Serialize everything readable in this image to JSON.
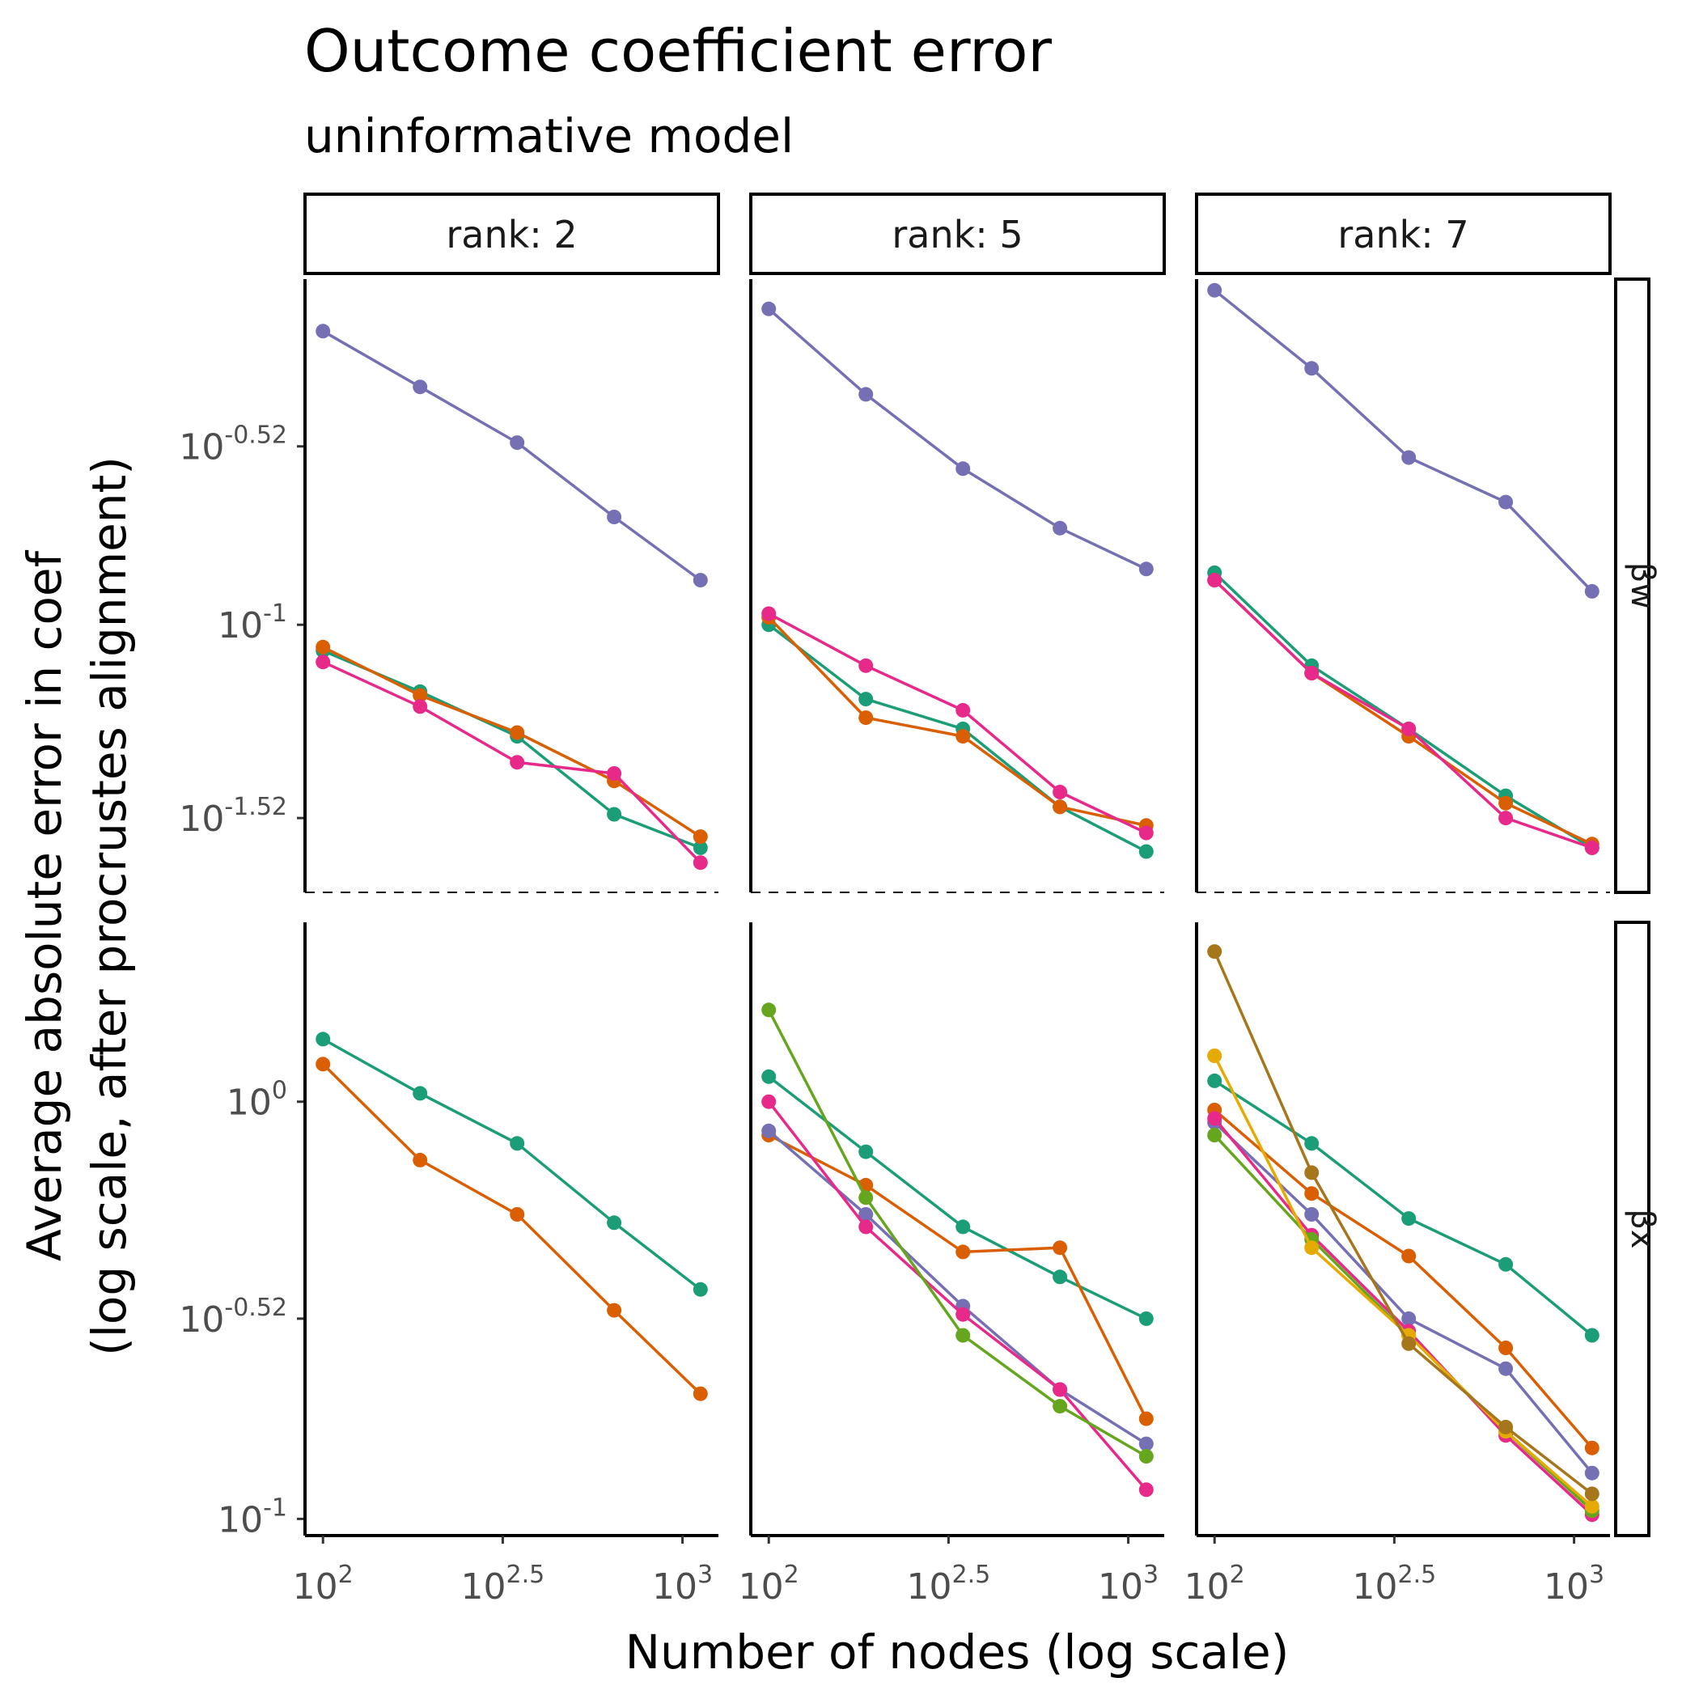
{
  "colors": {
    "teal": "#1b9e77",
    "orange": "#d95f02",
    "purple": "#7570b3",
    "pink": "#e7298a",
    "green": "#66a61e",
    "yellow": "#e6ab02",
    "brown": "#a6761d"
  },
  "chart_data": {
    "type": "line",
    "title": "Outcome coefficient error",
    "subtitle": "uninformative model",
    "xlabel": "Number of nodes (log scale)",
    "ylabel_line1": "Average absolute error in coef",
    "ylabel_line2": "(log scale, after procrustes alignment)",
    "x_log10": [
      2.0,
      2.27,
      2.54,
      2.81,
      3.05
    ],
    "x_ticks": [
      {
        "base": "10",
        "exp": "2",
        "value": 2.0
      },
      {
        "base": "10",
        "exp": "2.5",
        "value": 2.5
      },
      {
        "base": "10",
        "exp": "3",
        "value": 3.0
      }
    ],
    "xlim_log10": [
      1.95,
      3.1
    ],
    "columns": [
      {
        "label": "rank: 2"
      },
      {
        "label": "rank: 5"
      },
      {
        "label": "rank: 7"
      }
    ],
    "rows": [
      {
        "strip": "βw",
        "ylim_log10": [
          -1.72,
          -0.07
        ],
        "y_ticks": [
          {
            "base": "10",
            "exp": "-0.52",
            "value": -0.52
          },
          {
            "base": "10",
            "exp": "-1",
            "value": -1.0
          },
          {
            "base": "10",
            "exp": "-1.52",
            "value": -1.52
          }
        ],
        "panels": [
          [
            {
              "color": "purple",
              "y_log10": [
                -0.21,
                -0.36,
                -0.51,
                -0.71,
                -0.88
              ]
            },
            {
              "color": "teal",
              "y_log10": [
                -1.07,
                -1.18,
                -1.3,
                -1.51,
                -1.6
              ]
            },
            {
              "color": "orange",
              "y_log10": [
                -1.06,
                -1.19,
                -1.29,
                -1.42,
                -1.57
              ]
            },
            {
              "color": "pink",
              "y_log10": [
                -1.1,
                -1.22,
                -1.37,
                -1.4,
                -1.64
              ]
            }
          ],
          [
            {
              "color": "purple",
              "y_log10": [
                -0.15,
                -0.38,
                -0.58,
                -0.74,
                -0.85
              ]
            },
            {
              "color": "teal",
              "y_log10": [
                -1.0,
                -1.2,
                -1.28,
                -1.49,
                -1.61
              ]
            },
            {
              "color": "orange",
              "y_log10": [
                -0.98,
                -1.25,
                -1.3,
                -1.49,
                -1.54
              ]
            },
            {
              "color": "pink",
              "y_log10": [
                -0.97,
                -1.11,
                -1.23,
                -1.45,
                -1.56
              ]
            }
          ],
          [
            {
              "color": "purple",
              "y_log10": [
                -0.1,
                -0.31,
                -0.55,
                -0.67,
                -0.91
              ]
            },
            {
              "color": "teal",
              "y_log10": [
                -0.86,
                -1.11,
                -1.28,
                -1.46,
                -1.6
              ]
            },
            {
              "color": "orange",
              "y_log10": [
                -0.88,
                -1.13,
                -1.3,
                -1.48,
                -1.59
              ]
            },
            {
              "color": "pink",
              "y_log10": [
                -0.88,
                -1.13,
                -1.28,
                -1.52,
                -1.6
              ]
            }
          ]
        ]
      },
      {
        "strip": "βx",
        "ylim_log10": [
          -1.04,
          0.43
        ],
        "y_ticks": [
          {
            "base": "10",
            "exp": "0",
            "value": 0.0
          },
          {
            "base": "10",
            "exp": "-0.52",
            "value": -0.52
          },
          {
            "base": "10",
            "exp": "-1",
            "value": -1.0
          }
        ],
        "panels": [
          [
            {
              "color": "teal",
              "y_log10": [
                0.15,
                0.02,
                -0.1,
                -0.29,
                -0.45
              ]
            },
            {
              "color": "orange",
              "y_log10": [
                0.09,
                -0.14,
                -0.27,
                -0.5,
                -0.7
              ]
            }
          ],
          [
            {
              "color": "teal",
              "y_log10": [
                0.06,
                -0.12,
                -0.3,
                -0.42,
                -0.52
              ]
            },
            {
              "color": "orange",
              "y_log10": [
                -0.08,
                -0.2,
                -0.36,
                -0.35,
                -0.76
              ]
            },
            {
              "color": "purple",
              "y_log10": [
                -0.07,
                -0.27,
                -0.49,
                -0.69,
                -0.82
              ]
            },
            {
              "color": "pink",
              "y_log10": [
                0.0,
                -0.3,
                -0.51,
                -0.69,
                -0.93
              ]
            },
            {
              "color": "green",
              "y_log10": [
                0.22,
                -0.23,
                -0.56,
                -0.73,
                -0.85
              ]
            }
          ],
          [
            {
              "color": "teal",
              "y_log10": [
                0.05,
                -0.1,
                -0.28,
                -0.39,
                -0.56
              ]
            },
            {
              "color": "orange",
              "y_log10": [
                -0.02,
                -0.22,
                -0.37,
                -0.59,
                -0.83
              ]
            },
            {
              "color": "purple",
              "y_log10": [
                -0.05,
                -0.27,
                -0.52,
                -0.64,
                -0.89
              ]
            },
            {
              "color": "pink",
              "y_log10": [
                -0.04,
                -0.32,
                -0.55,
                -0.8,
                -0.99
              ]
            },
            {
              "color": "green",
              "y_log10": [
                -0.08,
                -0.33,
                -0.56,
                -0.79,
                -0.98
              ]
            },
            {
              "color": "yellow",
              "y_log10": [
                0.11,
                -0.35,
                -0.56,
                -0.79,
                -0.97
              ]
            },
            {
              "color": "brown",
              "y_log10": [
                0.36,
                -0.17,
                -0.58,
                -0.78,
                -0.94
              ]
            }
          ]
        ]
      }
    ]
  }
}
